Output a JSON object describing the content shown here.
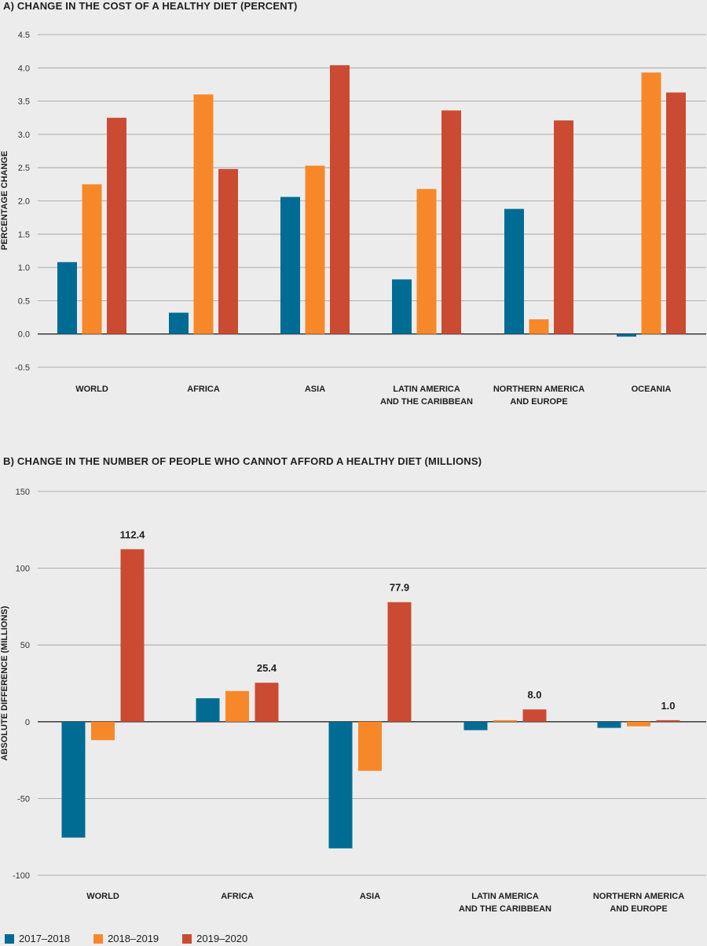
{
  "chart_data": [
    {
      "type": "bar",
      "title": "A) CHANGE IN THE COST OF A HEALTHY DIET (PERCENT)",
      "ylabel": "PERCENTAGE CHANGE",
      "xlabel": "",
      "ylim": [
        -0.5,
        4.5
      ],
      "yticks": [
        "4.5",
        "4.0",
        "3.5",
        "3.0",
        "2.5",
        "2.0",
        "1.5",
        "1.0",
        "0.5",
        "0.0",
        "-0.5"
      ],
      "categories": [
        [
          "WORLD"
        ],
        [
          "AFRICA"
        ],
        [
          "ASIA"
        ],
        [
          "LATIN AMERICA",
          "AND THE CARIBBEAN"
        ],
        [
          "NORTHERN AMERICA",
          "AND EUROPE"
        ],
        [
          "OCEANIA"
        ]
      ],
      "series": [
        {
          "name": "2017–2018",
          "color": "#006c93",
          "values": [
            1.08,
            0.32,
            2.06,
            0.82,
            1.88,
            -0.04
          ]
        },
        {
          "name": "2018–2019",
          "color": "#f7882a",
          "values": [
            2.25,
            3.6,
            2.53,
            2.18,
            0.22,
            3.93
          ]
        },
        {
          "name": "2019–2020",
          "color": "#cb4b32",
          "values": [
            3.25,
            2.48,
            4.04,
            3.36,
            3.21,
            3.63
          ]
        }
      ],
      "grid": true
    },
    {
      "type": "bar",
      "title": "B) CHANGE IN THE NUMBER OF PEOPLE WHO CANNOT AFFORD A HEALTHY DIET (MILLIONS)",
      "ylabel": "ABSOLUTE DIFFERENCE (MILLIONS)",
      "xlabel": "",
      "ylim": [
        -100,
        150
      ],
      "yticks": [
        "150",
        "100",
        "50",
        "0",
        "-50",
        "-100"
      ],
      "categories": [
        [
          "WORLD"
        ],
        [
          "AFRICA"
        ],
        [
          "ASIA"
        ],
        [
          "LATIN AMERICA",
          "AND THE CARIBBEAN"
        ],
        [
          "NORTHERN AMERICA",
          "AND EUROPE"
        ]
      ],
      "series": [
        {
          "name": "2017–2018",
          "color": "#006c93",
          "values": [
            -75.5,
            15.3,
            -82.5,
            -5.5,
            -4
          ]
        },
        {
          "name": "2018–2019",
          "color": "#f7882a",
          "values": [
            -12,
            20,
            -32,
            1,
            -3
          ]
        },
        {
          "name": "2019–2020",
          "color": "#cb4b32",
          "values": [
            112.4,
            25.4,
            77.9,
            8.0,
            1.0
          ]
        }
      ],
      "data_labels": [
        "112.4",
        "25.4",
        "77.9",
        "8.0",
        "1.0"
      ],
      "grid": true
    }
  ],
  "legend": [
    {
      "label": "2017–2018",
      "color": "#006c93"
    },
    {
      "label": "2018–2019",
      "color": "#f7882a"
    },
    {
      "label": "2019–2020",
      "color": "#cb4b32"
    }
  ]
}
